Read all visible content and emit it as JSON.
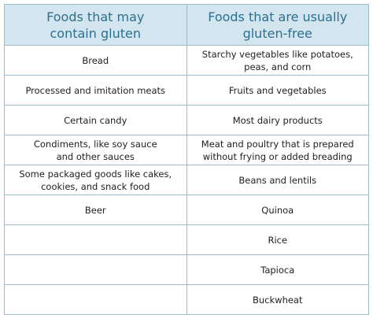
{
  "table": {
    "header": [
      "Foods that may\ncontain gluten",
      "Foods that are usually\ngluten-free"
    ],
    "columns": [
      [
        "Bread",
        "Processed and imitation meats",
        "Certain candy",
        "Condiments, like soy sauce\nand other sauces",
        "Some packaged goods like cakes,\ncookies, and snack food",
        "Beer"
      ],
      [
        "Starchy vegetables like potatoes,\npeas, and corn",
        "Fruits and vegetables",
        "Most dairy products",
        "Meat and poultry that is prepared\nwithout frying or added breading",
        "Beans and lentils",
        "Quinoa",
        "Rice",
        "Tapioca",
        "Buckwheat"
      ]
    ]
  }
}
